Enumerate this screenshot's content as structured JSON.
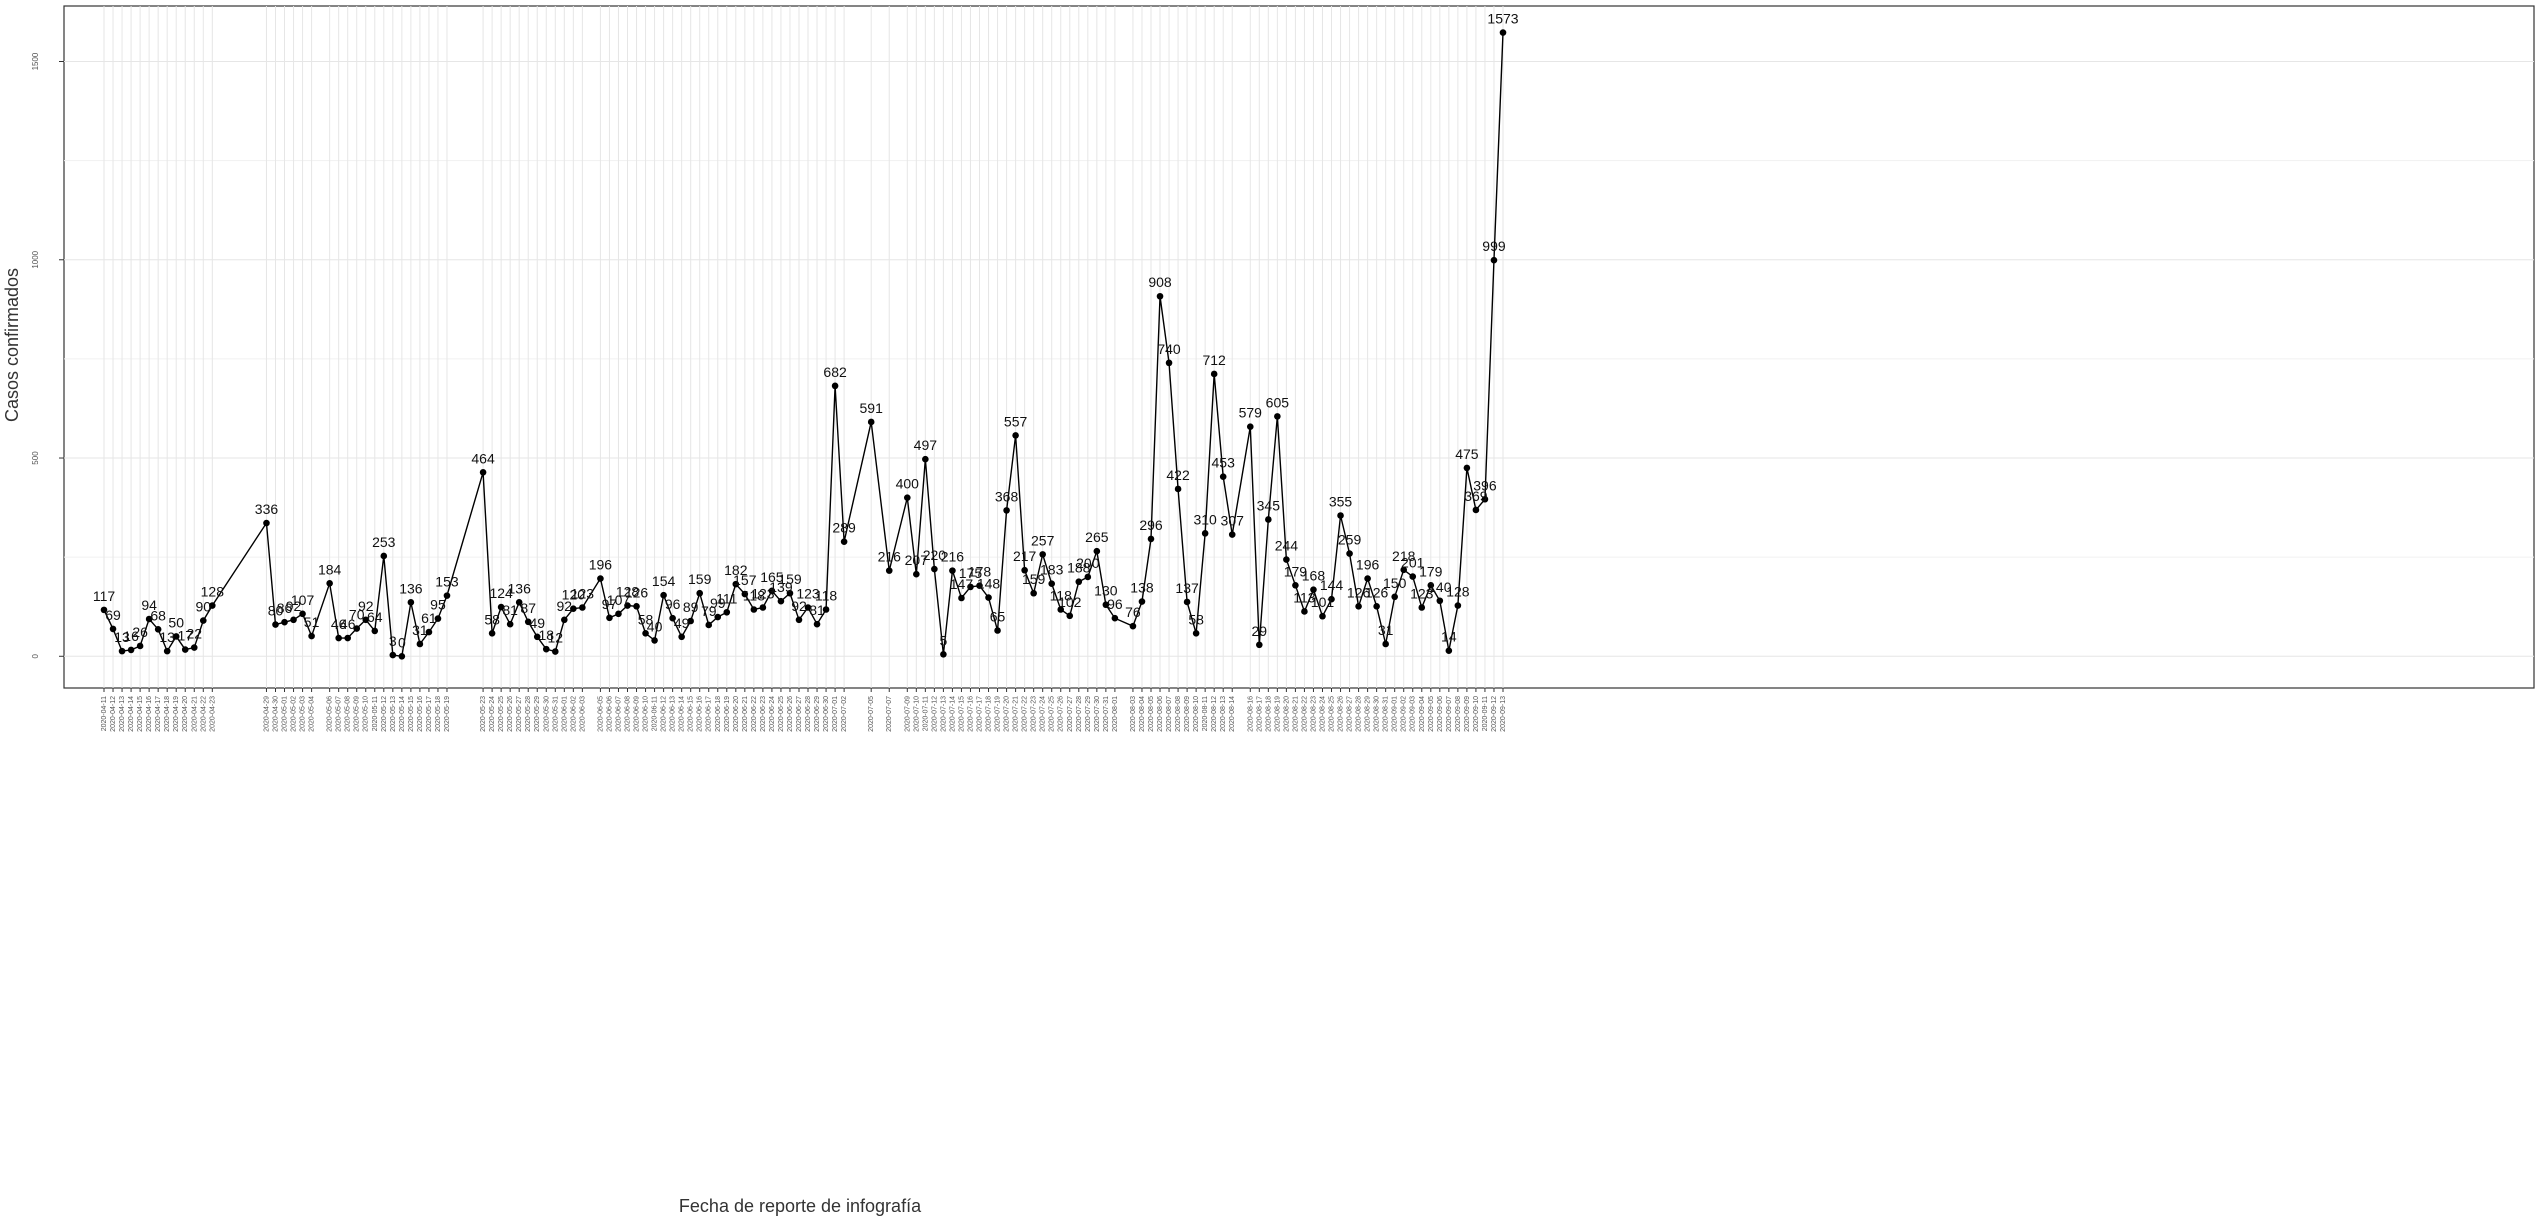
{
  "chart_data": {
    "type": "line",
    "title": "",
    "xlabel": "Fecha de reporte de infografía",
    "ylabel": "Casos confirmados",
    "ylim": [
      -80,
      1640
    ],
    "yticks": [
      0,
      500,
      1000,
      1500
    ],
    "grid": true,
    "x_start": "2020-04-11",
    "x_end": "2020-09-17",
    "points": [
      {
        "x": "2020-04-11",
        "y": 117
      },
      {
        "x": "2020-04-12",
        "y": 69
      },
      {
        "x": "2020-04-13",
        "y": 13
      },
      {
        "x": "2020-04-14",
        "y": 16
      },
      {
        "x": "2020-04-15",
        "y": 26
      },
      {
        "x": "2020-04-16",
        "y": 94
      },
      {
        "x": "2020-04-17",
        "y": 68
      },
      {
        "x": "2020-04-18",
        "y": 13
      },
      {
        "x": "2020-04-19",
        "y": 50
      },
      {
        "x": "2020-04-20",
        "y": 17
      },
      {
        "x": "2020-04-21",
        "y": 22
      },
      {
        "x": "2020-04-22",
        "y": 90
      },
      {
        "x": "2020-04-23",
        "y": 128
      },
      {
        "x": "2020-04-29",
        "y": 336
      },
      {
        "x": "2020-04-30",
        "y": 80
      },
      {
        "x": "2020-05-01",
        "y": 86
      },
      {
        "x": "2020-05-02",
        "y": 92
      },
      {
        "x": "2020-05-03",
        "y": 107
      },
      {
        "x": "2020-05-04",
        "y": 51
      },
      {
        "x": "2020-05-06",
        "y": 184
      },
      {
        "x": "2020-05-07",
        "y": 46
      },
      {
        "x": "2020-05-08",
        "y": 46
      },
      {
        "x": "2020-05-09",
        "y": 70
      },
      {
        "x": "2020-05-10",
        "y": 92
      },
      {
        "x": "2020-05-11",
        "y": 64
      },
      {
        "x": "2020-05-12",
        "y": 253
      },
      {
        "x": "2020-05-13",
        "y": 3
      },
      {
        "x": "2020-05-14",
        "y": 0
      },
      {
        "x": "2020-05-15",
        "y": 136
      },
      {
        "x": "2020-05-16",
        "y": 31
      },
      {
        "x": "2020-05-17",
        "y": 61
      },
      {
        "x": "2020-05-18",
        "y": 95
      },
      {
        "x": "2020-05-19",
        "y": 153
      },
      {
        "x": "2020-05-23",
        "y": 464
      },
      {
        "x": "2020-05-24",
        "y": 58
      },
      {
        "x": "2020-05-25",
        "y": 124
      },
      {
        "x": "2020-05-26",
        "y": 81
      },
      {
        "x": "2020-05-27",
        "y": 136
      },
      {
        "x": "2020-05-28",
        "y": 87
      },
      {
        "x": "2020-05-29",
        "y": 49
      },
      {
        "x": "2020-05-30",
        "y": 18
      },
      {
        "x": "2020-05-31",
        "y": 12
      },
      {
        "x": "2020-06-01",
        "y": 92
      },
      {
        "x": "2020-06-02",
        "y": 120
      },
      {
        "x": "2020-06-03",
        "y": 123
      },
      {
        "x": "2020-06-05",
        "y": 196
      },
      {
        "x": "2020-06-06",
        "y": 97
      },
      {
        "x": "2020-06-07",
        "y": 107
      },
      {
        "x": "2020-06-08",
        "y": 128
      },
      {
        "x": "2020-06-09",
        "y": 126
      },
      {
        "x": "2020-06-10",
        "y": 58
      },
      {
        "x": "2020-06-11",
        "y": 40
      },
      {
        "x": "2020-06-12",
        "y": 154
      },
      {
        "x": "2020-06-13",
        "y": 96
      },
      {
        "x": "2020-06-14",
        "y": 49
      },
      {
        "x": "2020-06-15",
        "y": 89
      },
      {
        "x": "2020-06-16",
        "y": 159
      },
      {
        "x": "2020-06-17",
        "y": 79
      },
      {
        "x": "2020-06-18",
        "y": 99
      },
      {
        "x": "2020-06-19",
        "y": 111
      },
      {
        "x": "2020-06-20",
        "y": 182
      },
      {
        "x": "2020-06-21",
        "y": 157
      },
      {
        "x": "2020-06-22",
        "y": 118
      },
      {
        "x": "2020-06-23",
        "y": 123
      },
      {
        "x": "2020-06-24",
        "y": 165
      },
      {
        "x": "2020-06-25",
        "y": 139
      },
      {
        "x": "2020-06-26",
        "y": 159
      },
      {
        "x": "2020-06-27",
        "y": 92
      },
      {
        "x": "2020-06-28",
        "y": 123
      },
      {
        "x": "2020-06-29",
        "y": 81
      },
      {
        "x": "2020-06-30",
        "y": 118
      },
      {
        "x": "2020-07-01",
        "y": 682
      },
      {
        "x": "2020-07-02",
        "y": 289
      },
      {
        "x": "2020-07-05",
        "y": 591
      },
      {
        "x": "2020-07-07",
        "y": 216
      },
      {
        "x": "2020-07-09",
        "y": 400
      },
      {
        "x": "2020-07-10",
        "y": 207
      },
      {
        "x": "2020-07-11",
        "y": 497
      },
      {
        "x": "2020-07-12",
        "y": 220
      },
      {
        "x": "2020-07-13",
        "y": 5
      },
      {
        "x": "2020-07-14",
        "y": 216
      },
      {
        "x": "2020-07-15",
        "y": 147
      },
      {
        "x": "2020-07-16",
        "y": 175
      },
      {
        "x": "2020-07-17",
        "y": 178
      },
      {
        "x": "2020-07-18",
        "y": 148
      },
      {
        "x": "2020-07-19",
        "y": 65
      },
      {
        "x": "2020-07-20",
        "y": 368
      },
      {
        "x": "2020-07-21",
        "y": 557
      },
      {
        "x": "2020-07-22",
        "y": 217
      },
      {
        "x": "2020-07-23",
        "y": 159
      },
      {
        "x": "2020-07-24",
        "y": 257
      },
      {
        "x": "2020-07-25",
        "y": 183
      },
      {
        "x": "2020-07-26",
        "y": 118
      },
      {
        "x": "2020-07-27",
        "y": 102
      },
      {
        "x": "2020-07-28",
        "y": 188
      },
      {
        "x": "2020-07-29",
        "y": 200
      },
      {
        "x": "2020-07-30",
        "y": 265
      },
      {
        "x": "2020-07-31",
        "y": 130
      },
      {
        "x": "2020-08-01",
        "y": 96
      },
      {
        "x": "2020-08-03",
        "y": 76
      },
      {
        "x": "2020-08-04",
        "y": 138
      },
      {
        "x": "2020-08-05",
        "y": 296
      },
      {
        "x": "2020-08-06",
        "y": 908
      },
      {
        "x": "2020-08-07",
        "y": 740
      },
      {
        "x": "2020-08-08",
        "y": 422
      },
      {
        "x": "2020-08-09",
        "y": 137
      },
      {
        "x": "2020-08-10",
        "y": 58
      },
      {
        "x": "2020-08-11",
        "y": 310
      },
      {
        "x": "2020-08-12",
        "y": 712
      },
      {
        "x": "2020-08-13",
        "y": 453
      },
      {
        "x": "2020-08-14",
        "y": 307
      },
      {
        "x": "2020-08-16",
        "y": 579
      },
      {
        "x": "2020-08-17",
        "y": 29
      },
      {
        "x": "2020-08-18",
        "y": 345
      },
      {
        "x": "2020-08-19",
        "y": 605
      },
      {
        "x": "2020-08-20",
        "y": 244
      },
      {
        "x": "2020-08-21",
        "y": 179
      },
      {
        "x": "2020-08-22",
        "y": 113
      },
      {
        "x": "2020-08-23",
        "y": 168
      },
      {
        "x": "2020-08-24",
        "y": 101
      },
      {
        "x": "2020-08-25",
        "y": 144
      },
      {
        "x": "2020-08-26",
        "y": 355
      },
      {
        "x": "2020-08-27",
        "y": 259
      },
      {
        "x": "2020-08-28",
        "y": 126
      },
      {
        "x": "2020-08-29",
        "y": 196
      },
      {
        "x": "2020-08-30",
        "y": 126
      },
      {
        "x": "2020-08-31",
        "y": 31
      },
      {
        "x": "2020-09-01",
        "y": 150
      },
      {
        "x": "2020-09-02",
        "y": 218
      },
      {
        "x": "2020-09-03",
        "y": 201
      },
      {
        "x": "2020-09-04",
        "y": 123
      },
      {
        "x": "2020-09-05",
        "y": 179
      },
      {
        "x": "2020-09-06",
        "y": 140
      },
      {
        "x": "2020-09-07",
        "y": 14
      },
      {
        "x": "2020-09-08",
        "y": 128
      },
      {
        "x": "2020-09-09",
        "y": 475
      },
      {
        "x": "2020-09-10",
        "y": 369
      },
      {
        "x": "2020-09-11",
        "y": 396
      },
      {
        "x": "2020-09-12",
        "y": 999
      },
      {
        "x": "2020-09-13",
        "y": 1573
      }
    ],
    "line_color": "#000000",
    "point_color": "#000000",
    "grid_color": "#e6e6e6"
  }
}
